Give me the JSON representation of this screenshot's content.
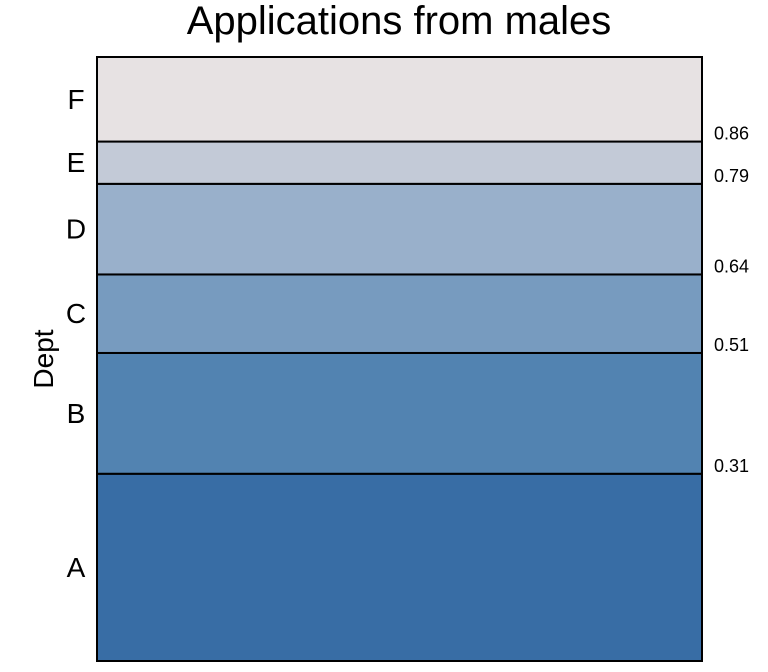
{
  "chart_data": {
    "type": "bar",
    "subtype": "stacked-proportion (spineplot)",
    "title": "Applications from males",
    "ylabel": "Dept",
    "xlabel": "",
    "categories": [
      "A",
      "B",
      "C",
      "D",
      "E",
      "F"
    ],
    "proportions": [
      0.31,
      0.2,
      0.13,
      0.15,
      0.07,
      0.14
    ],
    "cumulative_labels": [
      "0.31",
      "0.51",
      "0.64",
      "0.79",
      "0.86"
    ],
    "ylim": [
      0,
      1
    ],
    "grid": false,
    "legend": "none",
    "colors": [
      "#386da5",
      "#5283b1",
      "#779bbf",
      "#99b0cb",
      "#c3cad7",
      "#e7e2e3"
    ],
    "border_color": "#000000"
  }
}
